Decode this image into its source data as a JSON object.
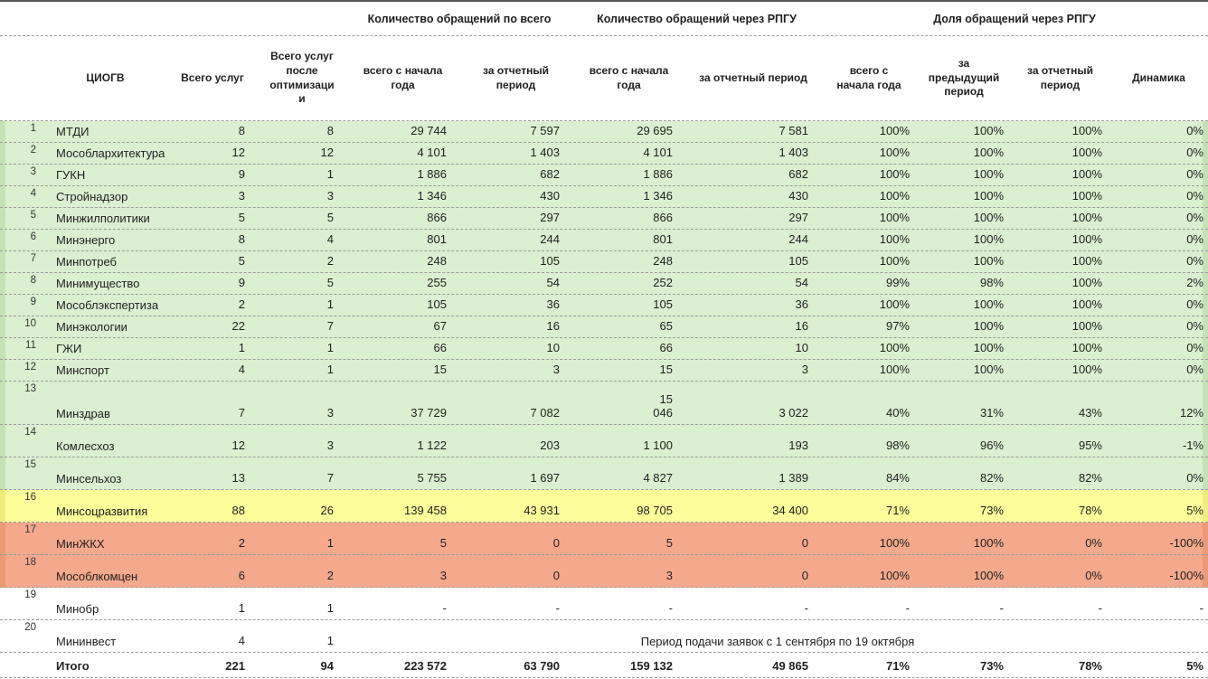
{
  "colors": {
    "green": "#daf0d0",
    "yellow": "#fdfd9a",
    "red": "#f5a98c"
  },
  "table": {
    "group_headers": {
      "total": "Количество обращений по всего",
      "rpgu": "Количество обращений через РПГУ",
      "share": "Доля обращений через РПГУ"
    },
    "columns": [
      "ЦИОГВ",
      "Всего услуг",
      "Всего услуг после оптимизации",
      "всего с начала года",
      "за отчетный период",
      "всего с начала года",
      "за отчетный период",
      "всего с начала года",
      "за предыдущий период",
      "за отчетный период",
      "Динамика"
    ],
    "rows": [
      {
        "num": "1",
        "name": "МТДИ",
        "size": "s",
        "color": "green",
        "values": [
          "8",
          "8",
          "29 744",
          "7 597",
          "29 695",
          "7 581",
          "100%",
          "100%",
          "100%",
          "0%"
        ]
      },
      {
        "num": "2",
        "name": "Мособлархитектура",
        "size": "s",
        "color": "green",
        "values": [
          "12",
          "12",
          "4 101",
          "1 403",
          "4 101",
          "1 403",
          "100%",
          "100%",
          "100%",
          "0%"
        ]
      },
      {
        "num": "3",
        "name": "ГУКН",
        "size": "s",
        "color": "green",
        "values": [
          "9",
          "1",
          "1 886",
          "682",
          "1 886",
          "682",
          "100%",
          "100%",
          "100%",
          "0%"
        ]
      },
      {
        "num": "4",
        "name": "Стройнадзор",
        "size": "s",
        "color": "green",
        "values": [
          "3",
          "3",
          "1 346",
          "430",
          "1 346",
          "430",
          "100%",
          "100%",
          "100%",
          "0%"
        ]
      },
      {
        "num": "5",
        "name": "Минжилполитики",
        "size": "s",
        "color": "green",
        "values": [
          "5",
          "5",
          "866",
          "297",
          "866",
          "297",
          "100%",
          "100%",
          "100%",
          "0%"
        ]
      },
      {
        "num": "6",
        "name": "Минэнерго",
        "size": "s",
        "color": "green",
        "values": [
          "8",
          "4",
          "801",
          "244",
          "801",
          "244",
          "100%",
          "100%",
          "100%",
          "0%"
        ]
      },
      {
        "num": "7",
        "name": "Минпотреб",
        "size": "s",
        "color": "green",
        "values": [
          "5",
          "2",
          "248",
          "105",
          "248",
          "105",
          "100%",
          "100%",
          "100%",
          "0%"
        ]
      },
      {
        "num": "8",
        "name": "Минимущество",
        "size": "s",
        "color": "green",
        "values": [
          "9",
          "5",
          "255",
          "54",
          "252",
          "54",
          "99%",
          "98%",
          "100%",
          "2%"
        ]
      },
      {
        "num": "9",
        "name": "Мособлэкспертиза",
        "size": "s",
        "color": "green",
        "values": [
          "2",
          "1",
          "105",
          "36",
          "105",
          "36",
          "100%",
          "100%",
          "100%",
          "0%"
        ]
      },
      {
        "num": "10",
        "name": "Минэкологии",
        "size": "s",
        "color": "green",
        "values": [
          "22",
          "7",
          "67",
          "16",
          "65",
          "16",
          "97%",
          "100%",
          "100%",
          "0%"
        ]
      },
      {
        "num": "11",
        "name": "ГЖИ",
        "size": "s",
        "color": "green",
        "values": [
          "1",
          "1",
          "66",
          "10",
          "66",
          "10",
          "100%",
          "100%",
          "100%",
          "0%"
        ]
      },
      {
        "num": "12",
        "name": "Минспорт",
        "size": "s",
        "color": "green",
        "values": [
          "4",
          "1",
          "15",
          "3",
          "15",
          "3",
          "100%",
          "100%",
          "100%",
          "0%"
        ]
      },
      {
        "num": "13",
        "name": "Минздрав",
        "size": "l",
        "color": "green",
        "values": [
          "7",
          "3",
          "37 729",
          "7 082",
          "15\n046",
          "3 022",
          "40%",
          "31%",
          "43%",
          "12%"
        ]
      },
      {
        "num": "14",
        "name": "Комлесхоз",
        "size": "m",
        "color": "green",
        "values": [
          "12",
          "3",
          "1 122",
          "203",
          "1 100",
          "193",
          "98%",
          "96%",
          "95%",
          "-1%"
        ]
      },
      {
        "num": "15",
        "name": "Минсельхоз",
        "size": "m",
        "color": "green",
        "values": [
          "13",
          "7",
          "5 755",
          "1 697",
          "4 827",
          "1 389",
          "84%",
          "82%",
          "82%",
          "0%"
        ]
      },
      {
        "num": "16",
        "name": "Минсоцразвития",
        "size": "m",
        "color": "yellow",
        "values": [
          "88",
          "26",
          "139 458",
          "43 931",
          "98 705",
          "34 400",
          "71%",
          "73%",
          "78%",
          "5%"
        ]
      },
      {
        "num": "17",
        "name": "МинЖКХ",
        "size": "m",
        "color": "red",
        "values": [
          "2",
          "1",
          "5",
          "0",
          "5",
          "0",
          "100%",
          "100%",
          "0%",
          "-100%"
        ]
      },
      {
        "num": "18",
        "name": "Мособлкомцен",
        "size": "m",
        "color": "red",
        "values": [
          "6",
          "2",
          "3",
          "0",
          "3",
          "0",
          "100%",
          "100%",
          "0%",
          "-100%"
        ]
      },
      {
        "num": "19",
        "name": "Минобр",
        "size": "m",
        "color": "white",
        "values": [
          "1",
          "1",
          "-",
          "-",
          "-",
          "-",
          "-",
          "-",
          "-",
          "-"
        ]
      },
      {
        "num": "20",
        "name": "Мининвест",
        "size": "m",
        "color": "white",
        "values": [
          "4",
          "1"
        ],
        "note": "Период подачи заявок с 1 сентября по 19 октября"
      },
      {
        "num": "",
        "name": "Итого",
        "size": "t",
        "color": "white",
        "total": true,
        "values": [
          "221",
          "94",
          "223 572",
          "63 790",
          "159 132",
          "49 865",
          "71%",
          "73%",
          "78%",
          "5%"
        ]
      }
    ]
  }
}
